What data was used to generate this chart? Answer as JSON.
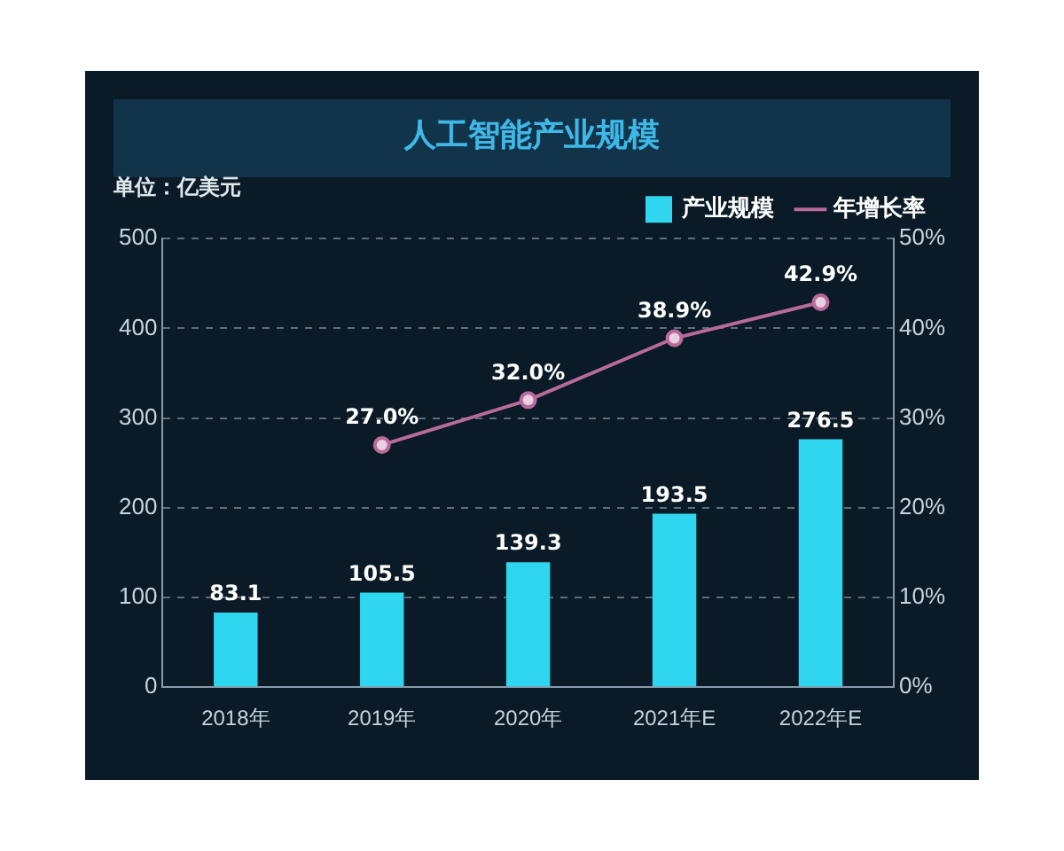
{
  "chart_data": {
    "type": "bar",
    "title": "人工智能产业规模",
    "ylabel": "单位：亿美元",
    "categories": [
      "2018年",
      "2019年",
      "2020年",
      "2021年E",
      "2022年E"
    ],
    "series": [
      {
        "name": "产业规模",
        "color": "#2fd6f0",
        "values": [
          83.1,
          105.5,
          139.3,
          193.5,
          276.5
        ]
      },
      {
        "name": "年增长率",
        "type": "line",
        "axis": "y2",
        "color": "#b86a9a",
        "marker": "circle",
        "values": [
          null,
          27.0,
          32.0,
          38.9,
          42.9
        ],
        "value_labels": [
          null,
          "27.0%",
          "32.0%",
          "38.9%",
          "42.9%"
        ]
      }
    ],
    "ylim": [
      0,
      500
    ],
    "yticks": [
      0,
      100,
      200,
      300,
      400,
      500
    ],
    "y2lim": [
      0,
      50
    ],
    "y2ticks": [
      {
        "value": 0,
        "label": "0%"
      },
      {
        "value": 10,
        "label": "10%"
      },
      {
        "value": 20,
        "label": "20%"
      },
      {
        "value": 30,
        "label": "30%"
      },
      {
        "value": 40,
        "label": "40%"
      },
      {
        "value": 50,
        "label": "50%"
      }
    ],
    "grid": "y",
    "legend": "top right",
    "data_labels": true
  }
}
